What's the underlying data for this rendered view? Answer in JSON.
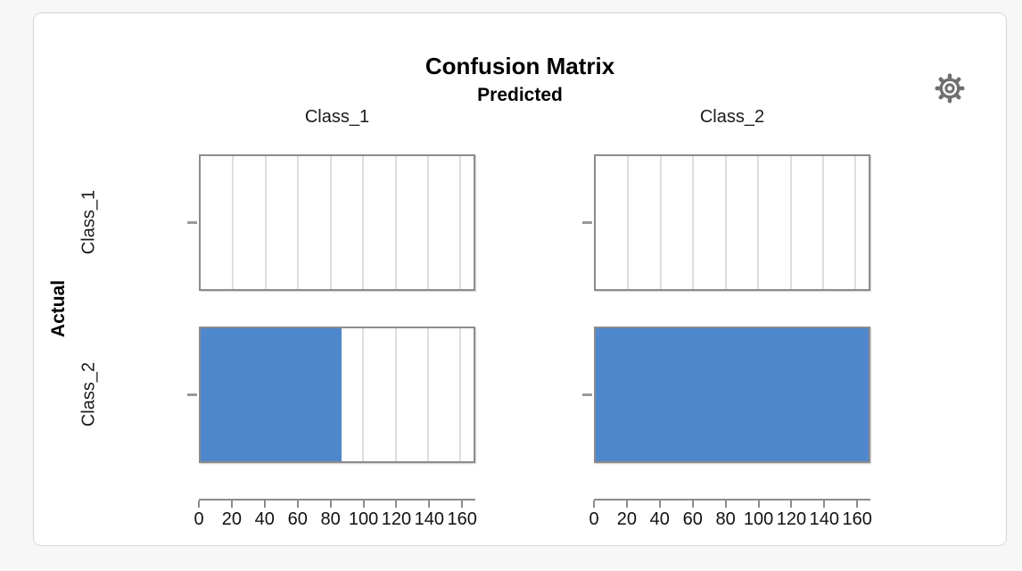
{
  "card": {
    "page_background": "#f7f7f7",
    "background": "#ffffff",
    "border_color": "#d6d6d6"
  },
  "toolbar": {
    "settings_icon": "gear-icon",
    "icon_color": "#707070"
  },
  "chart_data": {
    "type": "bar",
    "title": "Confusion Matrix",
    "column_axis_title": "Predicted",
    "row_axis_title": "Actual",
    "columns": [
      "Class_1",
      "Class_2"
    ],
    "rows": [
      "Class_1",
      "Class_2"
    ],
    "counts": [
      [
        0,
        0
      ],
      [
        87,
        168
      ]
    ],
    "x_axis": {
      "min": 0,
      "max": 168,
      "ticks": [
        0,
        20,
        40,
        60,
        80,
        100,
        120,
        140,
        160
      ]
    },
    "bar_color": "#4e87cb",
    "grid": true,
    "gridline_color": "#dedede",
    "panel_border_color": "#8c8c8c",
    "legend": "none",
    "layout": "2x2 trellis panels: rows = Actual classes, columns = Predicted classes; horizontal count bars"
  }
}
